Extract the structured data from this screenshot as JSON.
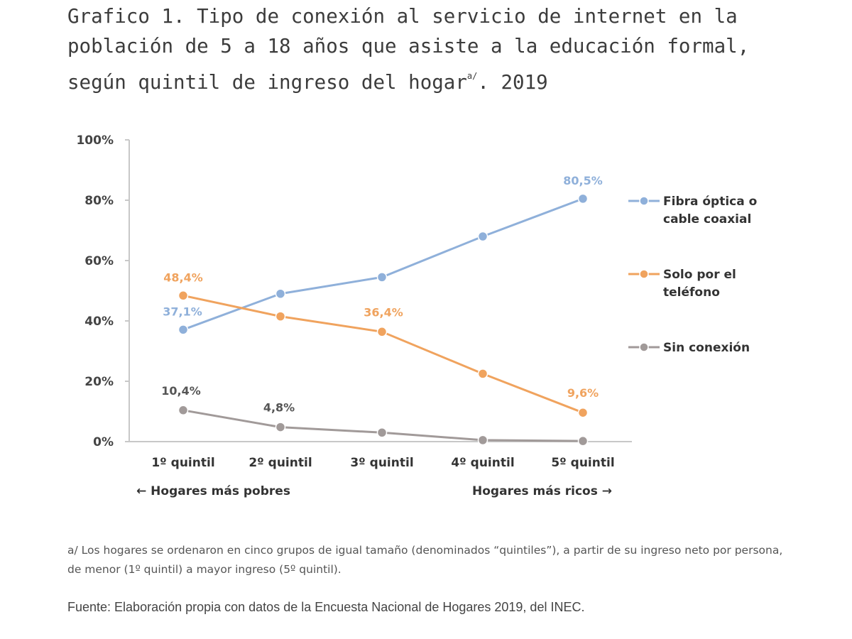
{
  "title_main": "Grafico 1. Tipo de conexión al servicio de internet en la población de 5 a 18 años que asiste a la educación formal, según quintil de ingreso del hogar",
  "title_sup": "a/",
  "title_year": ". 2019",
  "chart_data": {
    "type": "line",
    "categories": [
      "1º quintil",
      "2º quintil",
      "3º quintil",
      "4º quintil",
      "5º quintil"
    ],
    "yticks": [
      "0%",
      "20%",
      "40%",
      "60%",
      "80%",
      "100%"
    ],
    "ylim": [
      0,
      100
    ],
    "x_annotations": {
      "left": "← Hogares más pobres",
      "right": "Hogares más ricos →"
    },
    "series": [
      {
        "name": "Fibra óptica o cable coaxial",
        "legend_lines": [
          "Fibra óptica o",
          "cable coaxial"
        ],
        "color": "#8fb0da",
        "values": [
          37.1,
          49,
          54.5,
          68,
          80.5
        ],
        "labels": [
          "37,1%",
          "",
          "",
          "",
          "80,5%"
        ]
      },
      {
        "name": "Solo por el teléfono",
        "legend_lines": [
          "Solo por el",
          "teléfono"
        ],
        "color": "#f0a35e",
        "values": [
          48.4,
          41.5,
          36.4,
          22.5,
          9.6
        ],
        "labels": [
          "48,4%",
          "",
          "36,4%",
          "",
          "9,6%"
        ]
      },
      {
        "name": "Sin conexión",
        "legend_lines": [
          "Sin conexión"
        ],
        "color": "#a19a99",
        "values": [
          10.4,
          4.8,
          3.0,
          0.5,
          0.2
        ],
        "labels": [
          "10,4%",
          "4,8%",
          "",
          "",
          ""
        ]
      }
    ]
  },
  "note": "a/ Los hogares se ordenaron en cinco grupos de igual tamaño (denominados “quintiles”), a partir de su ingreso neto por persona, de menor (1º quintil) a mayor ingreso (5º quintil).",
  "source": "Fuente: Elaboración propia con datos de la Encuesta Nacional de Hogares 2019, del INEC."
}
